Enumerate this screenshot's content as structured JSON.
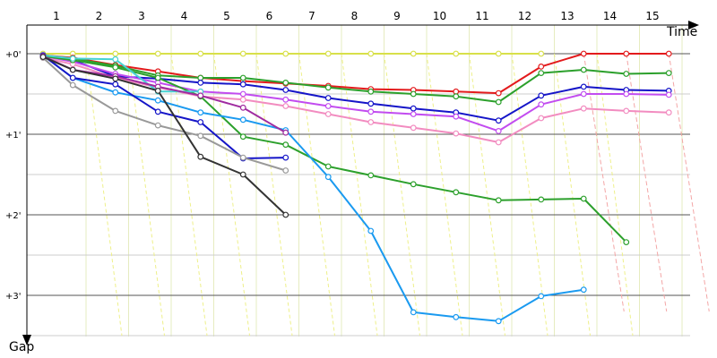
{
  "chart_data": {
    "type": "line",
    "xlabel": "Time",
    "ylabel": "Gap",
    "x": [
      "1",
      "2",
      "3",
      "4",
      "5",
      "6",
      "7",
      "8",
      "9",
      "10",
      "11",
      "12",
      "13",
      "14",
      "15"
    ],
    "y_ticks": [
      "+0'",
      "+1'",
      "+2'",
      "+3'"
    ],
    "ylim_minutes": [
      -0.1,
      3.5
    ],
    "grid": true,
    "series": [
      {
        "color": "#d8e04a",
        "points": [
          [
            1,
            0
          ],
          [
            1.7,
            0
          ],
          [
            2.7,
            0
          ],
          [
            3.7,
            0
          ],
          [
            4.7,
            0
          ],
          [
            5.7,
            0
          ],
          [
            6.7,
            0
          ],
          [
            7.7,
            0
          ],
          [
            8.7,
            0
          ],
          [
            9.7,
            0
          ],
          [
            10.7,
            0
          ],
          [
            11.7,
            0
          ],
          [
            12.7,
            0
          ]
        ]
      },
      {
        "color": "#e31a1c",
        "points": [
          [
            1,
            0.02
          ],
          [
            1.7,
            0.05
          ],
          [
            2.7,
            0.14
          ],
          [
            3.7,
            0.22
          ],
          [
            4.7,
            0.3
          ],
          [
            5.7,
            0.34
          ],
          [
            6.7,
            0.37
          ],
          [
            7.7,
            0.4
          ],
          [
            8.7,
            0.44
          ],
          [
            9.7,
            0.45
          ],
          [
            10.7,
            0.47
          ],
          [
            11.7,
            0.49
          ],
          [
            12.7,
            0.16
          ],
          [
            13.7,
            0
          ],
          [
            14.7,
            0
          ],
          [
            15.7,
            0
          ]
        ]
      },
      {
        "color": "#2ca02c",
        "points": [
          [
            1,
            0.02
          ],
          [
            1.7,
            0.06
          ],
          [
            2.7,
            0.15
          ],
          [
            3.7,
            0.27
          ],
          [
            4.7,
            0.3
          ],
          [
            5.7,
            0.3
          ],
          [
            6.7,
            0.36
          ],
          [
            7.7,
            0.42
          ],
          [
            8.7,
            0.47
          ],
          [
            9.7,
            0.5
          ],
          [
            10.7,
            0.53
          ],
          [
            11.7,
            0.6
          ],
          [
            12.7,
            0.24
          ],
          [
            13.7,
            0.2
          ],
          [
            14.7,
            0.25
          ],
          [
            15.7,
            0.24
          ]
        ]
      },
      {
        "color": "#1515c8",
        "points": [
          [
            1,
            0.02
          ],
          [
            1.7,
            0.08
          ],
          [
            2.7,
            0.28
          ],
          [
            3.7,
            0.31
          ],
          [
            4.7,
            0.36
          ],
          [
            5.7,
            0.38
          ],
          [
            6.7,
            0.45
          ],
          [
            7.7,
            0.55
          ],
          [
            8.7,
            0.62
          ],
          [
            9.7,
            0.68
          ],
          [
            10.7,
            0.73
          ],
          [
            11.7,
            0.83
          ],
          [
            12.7,
            0.52
          ],
          [
            13.7,
            0.41
          ],
          [
            14.7,
            0.45
          ],
          [
            15.7,
            0.46
          ]
        ]
      },
      {
        "color": "#c24cf0",
        "points": [
          [
            1,
            0.03
          ],
          [
            1.7,
            0.1
          ],
          [
            2.7,
            0.25
          ],
          [
            3.7,
            0.36
          ],
          [
            4.7,
            0.47
          ],
          [
            5.7,
            0.5
          ],
          [
            6.7,
            0.57
          ],
          [
            7.7,
            0.65
          ],
          [
            8.7,
            0.72
          ],
          [
            9.7,
            0.75
          ],
          [
            10.7,
            0.78
          ],
          [
            11.7,
            0.96
          ],
          [
            12.7,
            0.63
          ],
          [
            13.7,
            0.5
          ],
          [
            14.7,
            0.5
          ],
          [
            15.7,
            0.51
          ]
        ]
      },
      {
        "color": "#f28cc0",
        "points": [
          [
            1,
            0.05
          ],
          [
            1.7,
            0.13
          ],
          [
            2.7,
            0.3
          ],
          [
            3.7,
            0.42
          ],
          [
            4.7,
            0.53
          ],
          [
            5.7,
            0.57
          ],
          [
            6.7,
            0.65
          ],
          [
            7.7,
            0.75
          ],
          [
            8.7,
            0.85
          ],
          [
            9.7,
            0.92
          ],
          [
            10.7,
            0.99
          ],
          [
            11.7,
            1.1
          ],
          [
            12.7,
            0.8
          ],
          [
            13.7,
            0.68
          ],
          [
            14.7,
            0.71
          ],
          [
            15.7,
            0.73
          ]
        ]
      },
      {
        "color": "#2ca02c",
        "points": [
          [
            1,
            0.03
          ],
          [
            1.7,
            0.08
          ],
          [
            2.7,
            0.17
          ],
          [
            3.7,
            0.3
          ],
          [
            4.7,
            0.53
          ],
          [
            5.7,
            1.03
          ],
          [
            6.7,
            1.13
          ],
          [
            7.7,
            1.4
          ],
          [
            8.7,
            1.51
          ],
          [
            9.7,
            1.62
          ],
          [
            10.7,
            1.72
          ],
          [
            11.7,
            1.82
          ],
          [
            12.7,
            1.81
          ],
          [
            13.7,
            1.8
          ],
          [
            14.7,
            2.34
          ]
        ]
      },
      {
        "color": "#1a9af0",
        "points": [
          [
            1,
            0.02
          ],
          [
            1.7,
            0.3
          ],
          [
            2.7,
            0.48
          ],
          [
            3.7,
            0.58
          ],
          [
            4.7,
            0.73
          ],
          [
            5.7,
            0.82
          ],
          [
            6.7,
            0.95
          ],
          [
            7.7,
            1.53
          ],
          [
            8.7,
            2.2
          ],
          [
            9.7,
            3.21
          ],
          [
            10.7,
            3.27
          ],
          [
            11.7,
            3.32
          ],
          [
            12.7,
            3.01
          ],
          [
            13.7,
            2.93
          ]
        ]
      },
      {
        "color": "#46d3d3",
        "points": [
          [
            1,
            0.02
          ],
          [
            1.7,
            0.06
          ],
          [
            2.7,
            0.07
          ],
          [
            3.7,
            0.47
          ],
          [
            4.7,
            0.47
          ]
        ]
      },
      {
        "color": "#1515c8",
        "points": [
          [
            1,
            0.02
          ],
          [
            1.7,
            0.3
          ],
          [
            2.7,
            0.38
          ],
          [
            3.7,
            0.72
          ],
          [
            4.7,
            0.85
          ],
          [
            5.7,
            1.3
          ],
          [
            6.7,
            1.29
          ]
        ]
      },
      {
        "color": "#a02ca0",
        "points": [
          [
            1,
            0.03
          ],
          [
            1.7,
            0.2
          ],
          [
            2.7,
            0.28
          ],
          [
            3.7,
            0.41
          ],
          [
            4.7,
            0.52
          ],
          [
            5.7,
            0.67
          ],
          [
            6.7,
            0.98
          ]
        ]
      },
      {
        "color": "#999999",
        "points": [
          [
            1,
            0.05
          ],
          [
            1.7,
            0.39
          ],
          [
            2.7,
            0.71
          ],
          [
            3.7,
            0.89
          ],
          [
            4.7,
            1.02
          ],
          [
            5.7,
            1.29
          ],
          [
            6.7,
            1.45
          ]
        ]
      },
      {
        "color": "#333333",
        "points": [
          [
            1,
            0.04
          ],
          [
            1.7,
            0.2
          ],
          [
            2.7,
            0.31
          ],
          [
            3.7,
            0.46
          ],
          [
            4.7,
            1.28
          ],
          [
            5.7,
            1.5
          ],
          [
            6.7,
            2
          ]
        ]
      }
    ]
  }
}
